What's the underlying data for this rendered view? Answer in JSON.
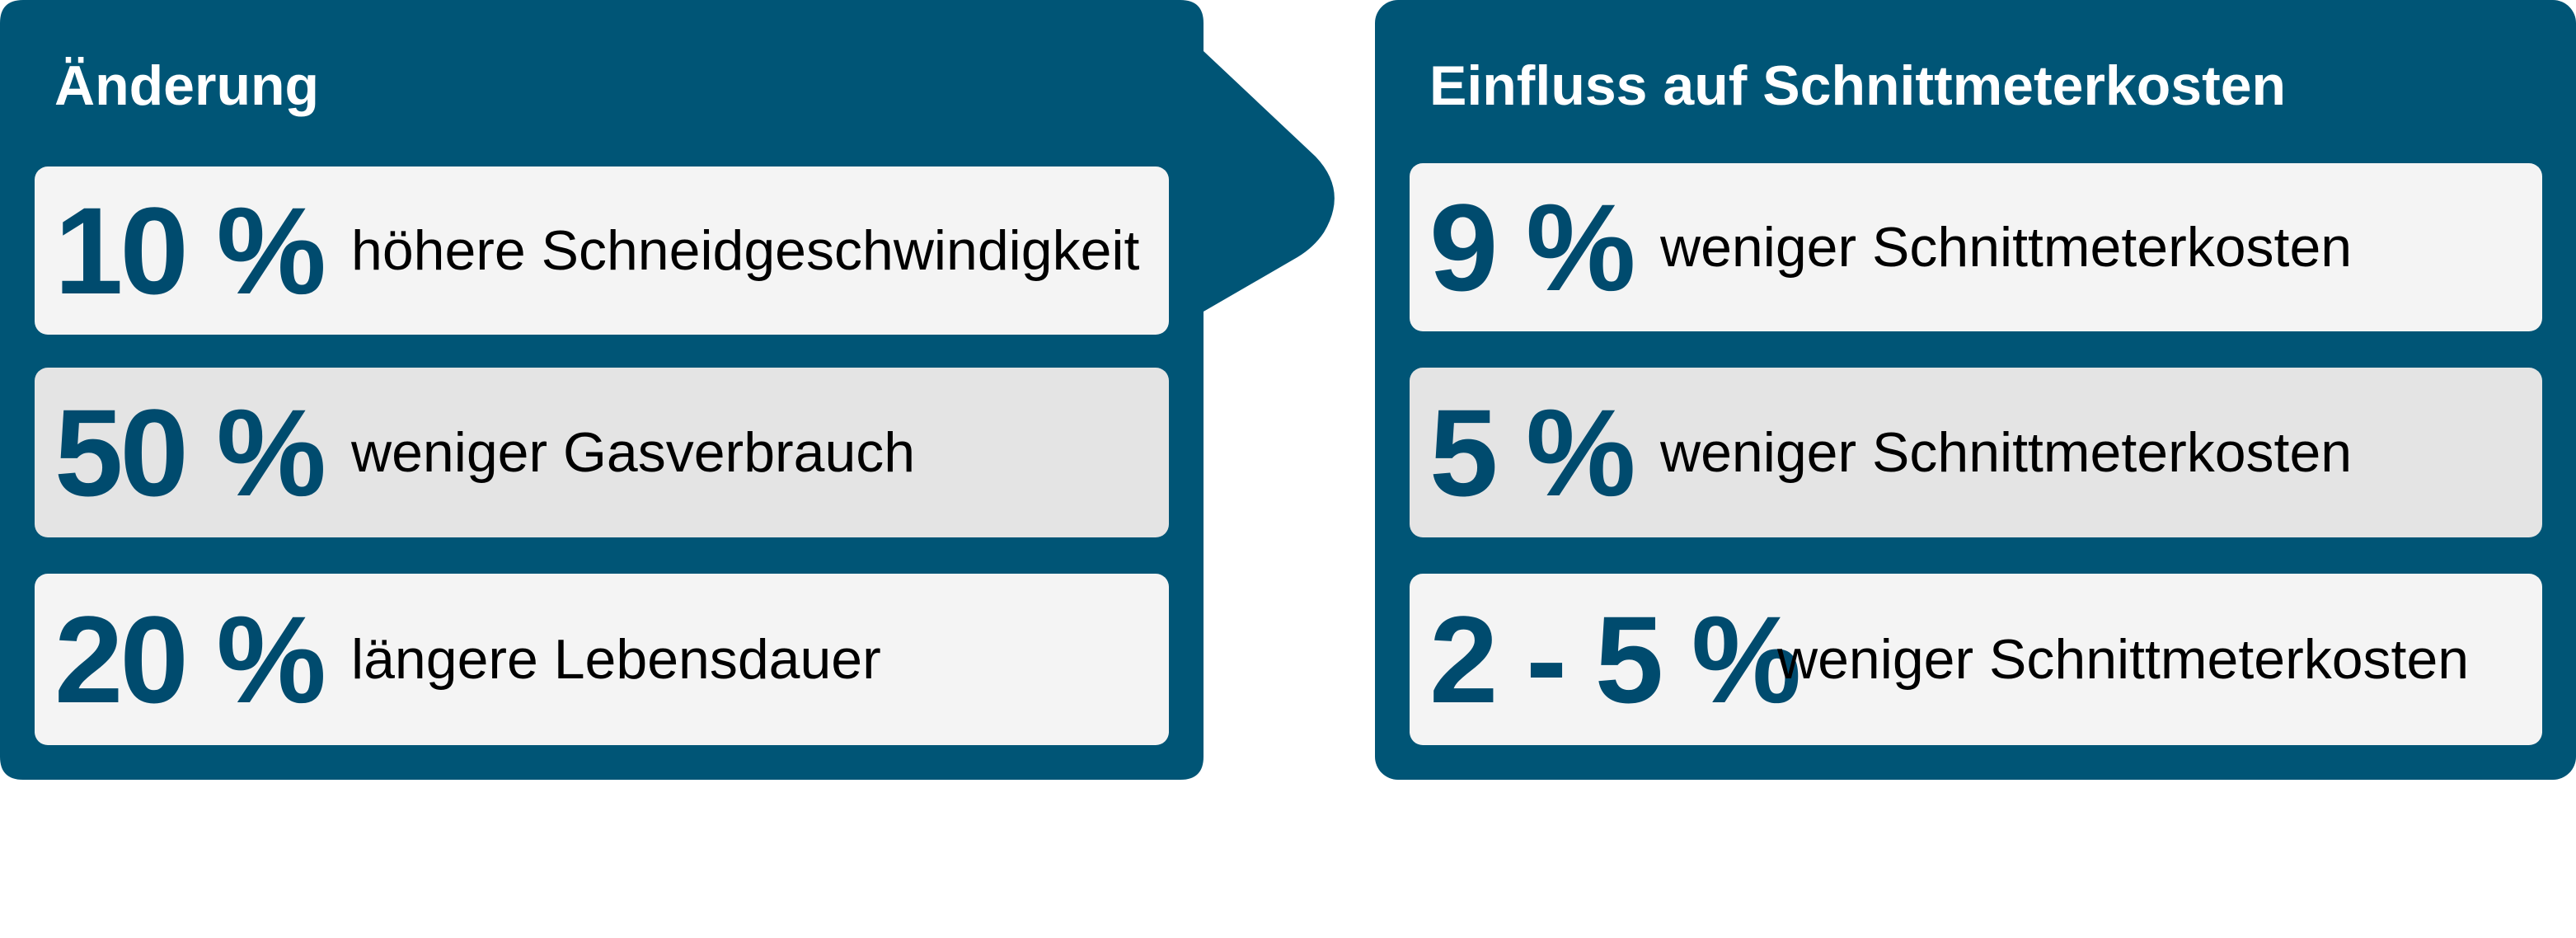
{
  "colors": {
    "panel": "#005576",
    "row_light": "#f4f4f4",
    "row_dark": "#e4e4e4",
    "value_text": "#004b6e"
  },
  "left_panel": {
    "title": "Änderung",
    "rows": [
      {
        "value": "10 %",
        "text": "höhere Schneidgeschwindigkeit"
      },
      {
        "value": "50 %",
        "text": "weniger Gasverbrauch"
      },
      {
        "value": "20 %",
        "text": "längere Lebensdauer"
      }
    ]
  },
  "right_panel": {
    "title": "Einfluss auf Schnittmeterkosten",
    "rows": [
      {
        "value": "9 %",
        "text": "weniger Schnittmeterkosten"
      },
      {
        "value": "5 %",
        "text": "weniger Schnittmeterkosten"
      },
      {
        "value": "2 - 5 %",
        "text": "weniger Schnittmeterkosten"
      }
    ]
  }
}
